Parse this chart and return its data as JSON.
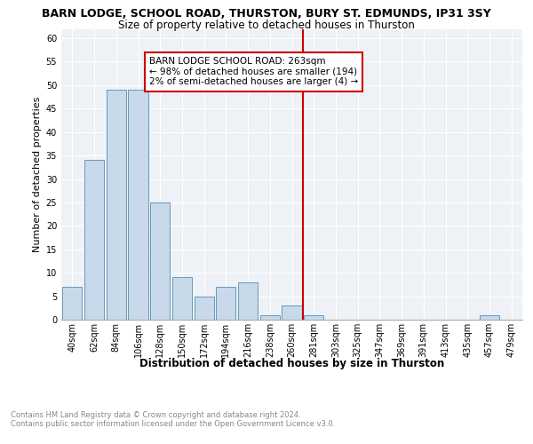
{
  "title": "BARN LODGE, SCHOOL ROAD, THURSTON, BURY ST. EDMUNDS, IP31 3SY",
  "subtitle": "Size of property relative to detached houses in Thurston",
  "xlabel": "Distribution of detached houses by size in Thurston",
  "ylabel": "Number of detached properties",
  "bar_color": "#c8d9ea",
  "bar_edge_color": "#6699bb",
  "categories": [
    "40sqm",
    "62sqm",
    "84sqm",
    "106sqm",
    "128sqm",
    "150sqm",
    "172sqm",
    "194sqm",
    "216sqm",
    "238sqm",
    "260sqm",
    "281sqm",
    "303sqm",
    "325sqm",
    "347sqm",
    "369sqm",
    "391sqm",
    "413sqm",
    "435sqm",
    "457sqm",
    "479sqm"
  ],
  "values": [
    7,
    34,
    49,
    49,
    25,
    9,
    5,
    7,
    8,
    1,
    3,
    1,
    0,
    0,
    0,
    0,
    0,
    0,
    0,
    1,
    0
  ],
  "vline_x": 10.5,
  "vline_color": "#cc0000",
  "annotation_line1": "BARN LODGE SCHOOL ROAD: 263sqm",
  "annotation_line2": "← 98% of detached houses are smaller (194)",
  "annotation_line3": "2% of semi-detached houses are larger (4) →",
  "annotation_box_color": "#cc0000",
  "ylim": [
    0,
    62
  ],
  "yticks": [
    0,
    5,
    10,
    15,
    20,
    25,
    30,
    35,
    40,
    45,
    50,
    55,
    60
  ],
  "footer_text": "Contains HM Land Registry data © Crown copyright and database right 2024.\nContains public sector information licensed under the Open Government Licence v3.0.",
  "background_color": "#eef2f7",
  "grid_color": "#ffffff",
  "title_fontsize": 9,
  "subtitle_fontsize": 8.5,
  "annotation_fontsize": 7.5,
  "axis_label_fontsize": 8,
  "tick_fontsize": 7,
  "xlabel_fontsize": 8.5,
  "footer_fontsize": 6
}
